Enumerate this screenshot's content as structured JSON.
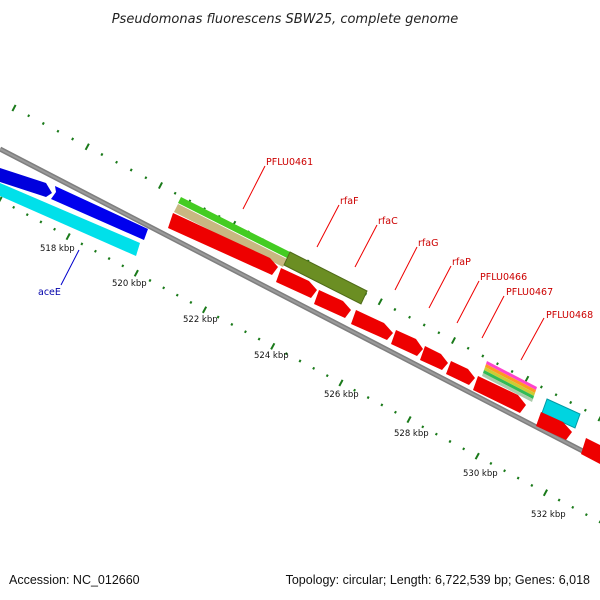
{
  "title": "Pseudomonas fluorescens SBW25, complete genome",
  "footer": {
    "accession": "Accession: NC_012660",
    "summary": "Topology: circular; Length: 6,722,539 bp; Genes: 6,018"
  },
  "scale": {
    "unit": "kbp",
    "ticks": [
      "518 kbp",
      "520 kbp",
      "522 kbp",
      "524 kbp",
      "526 kbp",
      "528 kbp",
      "530 kbp",
      "532 kbp"
    ]
  },
  "genes": [
    {
      "name": "aceE",
      "color": "#0000cc"
    },
    {
      "name": "PFLU0461",
      "color": "#ee0000"
    },
    {
      "name": "rfaF",
      "color": "#ee0000"
    },
    {
      "name": "rfaC",
      "color": "#ee0000"
    },
    {
      "name": "rfaG",
      "color": "#ee0000"
    },
    {
      "name": "rfaP",
      "color": "#ee0000"
    },
    {
      "name": "PFLU0466",
      "color": "#ee0000"
    },
    {
      "name": "PFLU0467",
      "color": "#ee0000"
    },
    {
      "name": "PFLU0468",
      "color": "#ee0000"
    }
  ],
  "colors": {
    "backbone": "#888888",
    "forward_cds": "#0000ee",
    "cyan_feature": "#00e5ee",
    "reverse_cds": "#ee0000",
    "green_feature": "#44cc22",
    "tan_feature": "#c8b882",
    "olive_feature": "#6b8e23",
    "tick": "#1a7a1a"
  }
}
